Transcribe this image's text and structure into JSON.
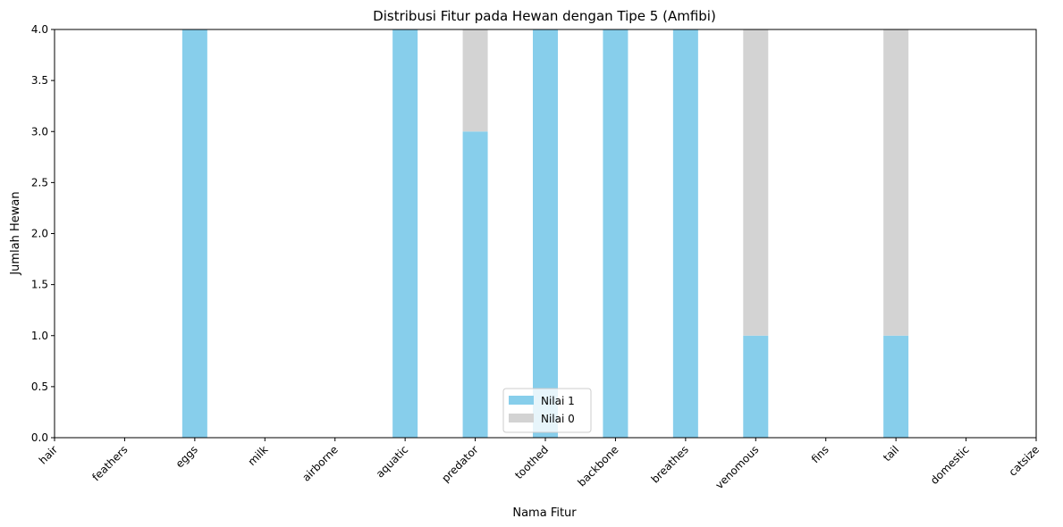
{
  "chart_data": {
    "type": "bar",
    "stacked": true,
    "title": "Distribusi Fitur pada Hewan dengan Tipe 5 (Amfibi)",
    "xlabel": "Nama Fitur",
    "ylabel": "Jumlah Hewan",
    "ylim": [
      0,
      4.0
    ],
    "yticks": [
      "0.0",
      "0.5",
      "1.0",
      "1.5",
      "2.0",
      "2.5",
      "3.0",
      "3.5",
      "4.0"
    ],
    "categories": [
      "hair",
      "feathers",
      "eggs",
      "milk",
      "airborne",
      "aquatic",
      "predator",
      "toothed",
      "backbone",
      "breathes",
      "venomous",
      "fins",
      "tail",
      "domestic",
      "catsize"
    ],
    "series": [
      {
        "name": "Nilai 1",
        "color": "#87ceeb",
        "values": [
          0,
          0,
          4,
          0,
          0,
          4,
          3,
          4,
          4,
          4,
          1,
          0,
          1,
          0,
          0
        ]
      },
      {
        "name": "Nilai 0",
        "color": "#d3d3d3",
        "values": [
          0,
          0,
          0,
          0,
          0,
          0,
          1,
          0,
          0,
          0,
          3,
          0,
          3,
          0,
          0
        ]
      }
    ],
    "legend_position": "bottom-center",
    "grid": false
  }
}
